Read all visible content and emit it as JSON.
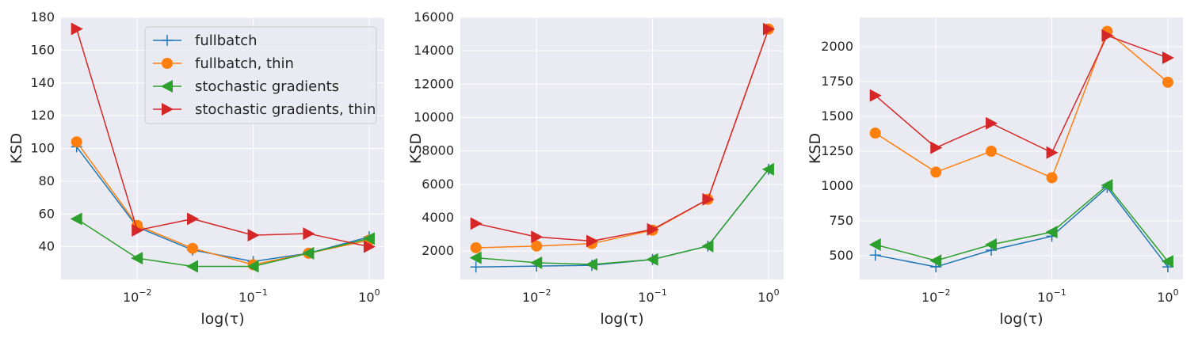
{
  "chart_data": [
    {
      "type": "line",
      "xscale": "log",
      "x": [
        0.003,
        0.01,
        0.03,
        0.1,
        0.3,
        1.0
      ],
      "xlim": [
        0.0022,
        1.35
      ],
      "xticks": [
        {
          "value": 0.01,
          "base": "10",
          "exp": "−2"
        },
        {
          "value": 0.1,
          "base": "10",
          "exp": "−1"
        },
        {
          "value": 1,
          "base": "10",
          "exp": "0"
        }
      ],
      "xlabel": "log(τ)",
      "ylabel": "KSD",
      "ylim": [
        20,
        180
      ],
      "yticks": [
        40,
        60,
        80,
        100,
        120,
        140,
        160,
        180
      ],
      "legend": "upper-right",
      "series": [
        {
          "name": "fullbatch",
          "color": "#1f77b4",
          "marker": "plus",
          "values": [
            101,
            52,
            38,
            31,
            36,
            46
          ]
        },
        {
          "name": "fullbatch, thin",
          "color": "#ff7f0e",
          "marker": "circle",
          "values": [
            104,
            53,
            39,
            29,
            36,
            44
          ]
        },
        {
          "name": "stochastic gradients",
          "color": "#2ca02c",
          "marker": "triangle-left",
          "values": [
            57,
            33,
            28,
            28,
            36,
            45
          ]
        },
        {
          "name": "stochastic gradients, thin",
          "color": "#d62728",
          "marker": "triangle-right",
          "values": [
            173,
            50,
            57,
            47,
            48,
            40
          ]
        }
      ]
    },
    {
      "type": "line",
      "xscale": "log",
      "x": [
        0.003,
        0.01,
        0.03,
        0.1,
        0.3,
        1.0
      ],
      "xlim": [
        0.0022,
        1.35
      ],
      "xticks": [
        {
          "value": 0.01,
          "base": "10",
          "exp": "−2"
        },
        {
          "value": 0.1,
          "base": "10",
          "exp": "−1"
        },
        {
          "value": 1,
          "base": "10",
          "exp": "0"
        }
      ],
      "xlabel": "log(τ)",
      "ylabel": "KSD",
      "ylim": [
        300,
        16000
      ],
      "yticks": [
        2000,
        4000,
        6000,
        8000,
        10000,
        12000,
        14000,
        16000
      ],
      "series": [
        {
          "color": "#1f77b4",
          "marker": "plus",
          "values": [
            1050,
            1100,
            1150,
            1500,
            2300,
            6900
          ]
        },
        {
          "color": "#ff7f0e",
          "marker": "circle",
          "values": [
            2200,
            2300,
            2450,
            3250,
            5100,
            15300
          ]
        },
        {
          "color": "#2ca02c",
          "marker": "triangle-left",
          "values": [
            1600,
            1300,
            1200,
            1500,
            2300,
            6900
          ]
        },
        {
          "color": "#d62728",
          "marker": "triangle-right",
          "values": [
            3650,
            2850,
            2600,
            3300,
            5100,
            15300
          ]
        }
      ]
    },
    {
      "type": "line",
      "xscale": "log",
      "x": [
        0.003,
        0.01,
        0.03,
        0.1,
        0.3,
        1.0
      ],
      "xlim": [
        0.0022,
        1.35
      ],
      "xticks": [
        {
          "value": 0.01,
          "base": "10",
          "exp": "−2"
        },
        {
          "value": 0.1,
          "base": "10",
          "exp": "−1"
        },
        {
          "value": 1,
          "base": "10",
          "exp": "0"
        }
      ],
      "xlabel": "log(τ)",
      "ylabel": "KSD",
      "ylim": [
        330,
        2210
      ],
      "yticks": [
        500,
        750,
        1000,
        1250,
        1500,
        1750,
        2000
      ],
      "series": [
        {
          "color": "#1f77b4",
          "marker": "plus",
          "values": [
            505,
            420,
            540,
            640,
            990,
            420
          ]
        },
        {
          "color": "#ff7f0e",
          "marker": "circle",
          "values": [
            1380,
            1100,
            1250,
            1060,
            2110,
            1745
          ]
        },
        {
          "color": "#2ca02c",
          "marker": "triangle-left",
          "values": [
            580,
            465,
            580,
            670,
            1005,
            460
          ]
        },
        {
          "color": "#d62728",
          "marker": "triangle-right",
          "values": [
            1650,
            1275,
            1450,
            1240,
            2080,
            1920
          ]
        }
      ]
    }
  ]
}
